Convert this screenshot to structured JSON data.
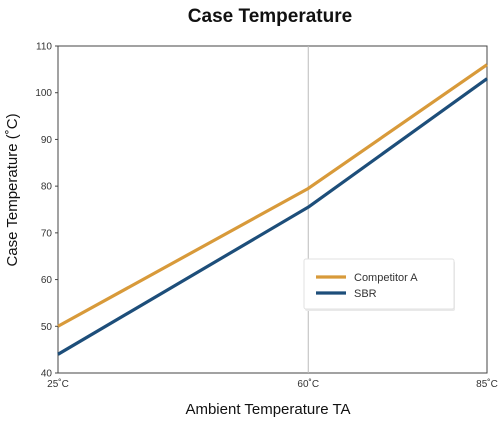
{
  "chart_data": {
    "type": "line",
    "title": "Case Temperature",
    "xlabel": "Ambient Temperature TA",
    "ylabel": "Case Temperature (˚C)",
    "x": [
      25,
      60,
      85
    ],
    "x_tick_labels": [
      "25˚C",
      "60˚C",
      "85˚C"
    ],
    "xlim": [
      25,
      85
    ],
    "ylim": [
      40,
      110
    ],
    "y_ticks": [
      40,
      50,
      60,
      70,
      80,
      90,
      100,
      110
    ],
    "grid": "vertical at 60˚C only",
    "legend_position": "lower-right",
    "series": [
      {
        "name": "Competitor A",
        "color": "#d89a3a",
        "values": [
          50,
          79.5,
          106
        ]
      },
      {
        "name": "SBR",
        "color": "#1d4e7a",
        "values": [
          44,
          75.5,
          103
        ]
      }
    ]
  }
}
